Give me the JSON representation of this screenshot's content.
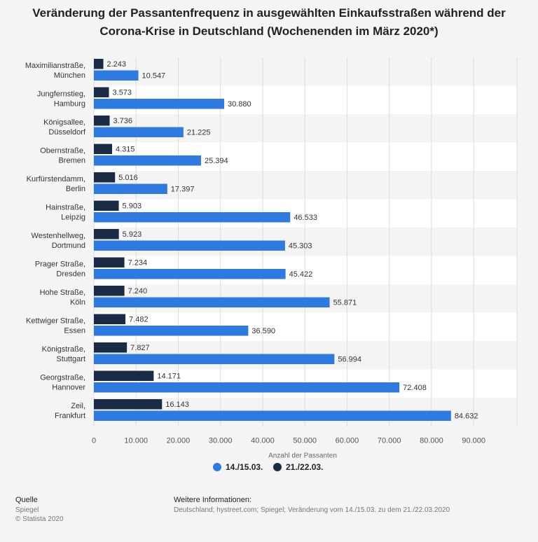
{
  "chart_data": {
    "type": "bar",
    "orientation": "horizontal",
    "title": "Veränderung der Passantenfrequenz in ausgewählten Einkaufsstraßen während der Corona-Krise in Deutschland (Wochenenden im März 2020*)",
    "xlabel": "Anzahl der Passanten",
    "ylabel": "",
    "xlim": [
      0,
      100000
    ],
    "xticks": [
      0,
      10000,
      20000,
      30000,
      40000,
      50000,
      60000,
      70000,
      80000,
      90000
    ],
    "xtick_labels": [
      "0",
      "10.000",
      "20.000",
      "30.000",
      "40.000",
      "50.000",
      "60.000",
      "70.000",
      "80.000",
      "90.000"
    ],
    "grid": true,
    "legend_position": "bottom-center",
    "categories": [
      [
        "Maximilianstraße,",
        "München"
      ],
      [
        "Jungfernstieg,",
        "Hamburg"
      ],
      [
        "Königsallee,",
        "Düsseldorf"
      ],
      [
        "Obernstraße,",
        "Bremen"
      ],
      [
        "Kurfürstendamm,",
        "Berlin"
      ],
      [
        "Hainstraße,",
        "Leipzig"
      ],
      [
        "Westenhellweg,",
        "Dortmund"
      ],
      [
        "Prager Straße,",
        "Dresden"
      ],
      [
        "Hohe Straße,",
        "Köln"
      ],
      [
        "Kettwiger Straße,",
        "Essen"
      ],
      [
        "Königstraße,",
        "Stuttgart"
      ],
      [
        "Georgstraße,",
        "Hannover"
      ],
      [
        "Zeil,",
        "Frankfurt"
      ]
    ],
    "series": [
      {
        "name": "21./22.03.",
        "color": "#1a2b45",
        "values": [
          2243,
          3573,
          3736,
          4315,
          5016,
          5903,
          5923,
          7234,
          7240,
          7482,
          7827,
          14171,
          16143
        ],
        "labels": [
          "2.243",
          "3.573",
          "3.736",
          "4.315",
          "5.016",
          "5.903",
          "5.923",
          "7.234",
          "7.240",
          "7.482",
          "7.827",
          "14.171",
          "16.143"
        ]
      },
      {
        "name": "14./15.03.",
        "color": "#2f7ae0",
        "values": [
          10547,
          30880,
          21225,
          25394,
          17397,
          46533,
          45303,
          45422,
          55871,
          36590,
          56994,
          72408,
          84632
        ],
        "labels": [
          "10.547",
          "30.880",
          "21.225",
          "25.394",
          "17.397",
          "46.533",
          "45.303",
          "45.422",
          "55.871",
          "36.590",
          "56.994",
          "72.408",
          "84.632"
        ]
      }
    ],
    "legend": [
      "14./15.03.",
      "21./22.03."
    ]
  },
  "footer": {
    "source_label": "Quelle",
    "source_lines": [
      "Spiegel",
      "© Statista 2020"
    ],
    "info_label": "Weitere Informationen:",
    "info_text": "Deutschland; hystreet.com; Spiegel; Veränderung vom 14./15.03. zu dem 21./22.03.2020"
  }
}
